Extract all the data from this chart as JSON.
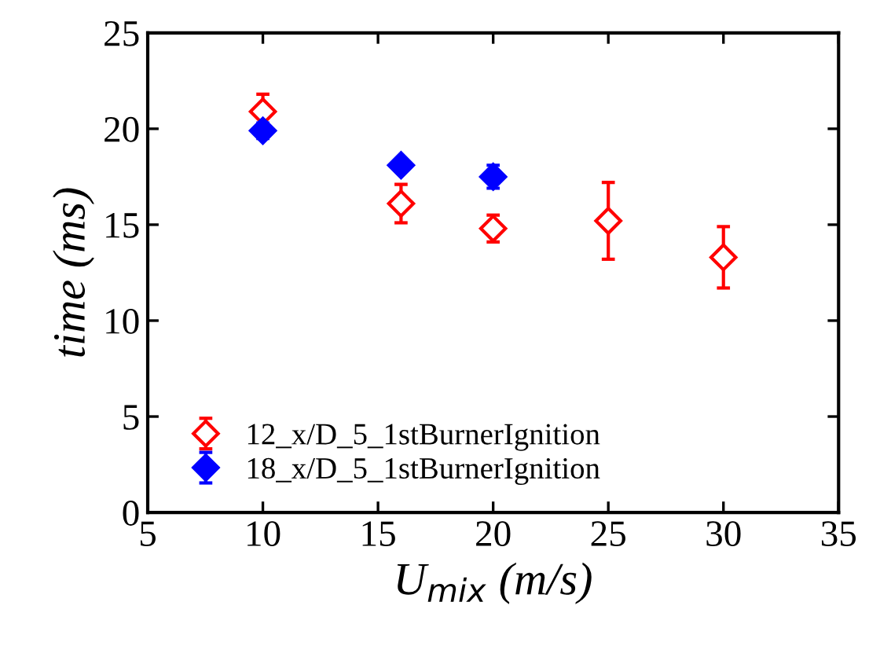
{
  "chart_data": {
    "type": "scatter",
    "xlabel": "U$_{mix}$ (m/s)",
    "ylabel": "time (ms)",
    "xlim": [
      5,
      35
    ],
    "xticks": [
      5,
      10,
      15,
      20,
      25,
      30,
      35
    ],
    "ylim": [
      0,
      25
    ],
    "yticks": [
      0,
      5,
      10,
      15,
      20,
      25
    ],
    "grid": false,
    "legend": "bottom left",
    "marker": "diamond",
    "series": [
      {
        "name": "12_x/D_5_1stBurnerIgnition",
        "color": "#ff0000",
        "x": [
          10,
          16,
          20,
          25,
          30
        ],
        "values": [
          20.9,
          16.1,
          14.8,
          15.2,
          13.3
        ],
        "errors": [
          0.9,
          1.0,
          0.7,
          2.0,
          1.6
        ]
      },
      {
        "name": "18_x/D_5_1stBurnerIgnition",
        "color": "#0000ff",
        "x": [
          10,
          16,
          20
        ],
        "values": [
          19.9,
          18.1,
          17.5
        ],
        "errors": [
          0.4,
          0.3,
          0.6
        ]
      }
    ]
  }
}
